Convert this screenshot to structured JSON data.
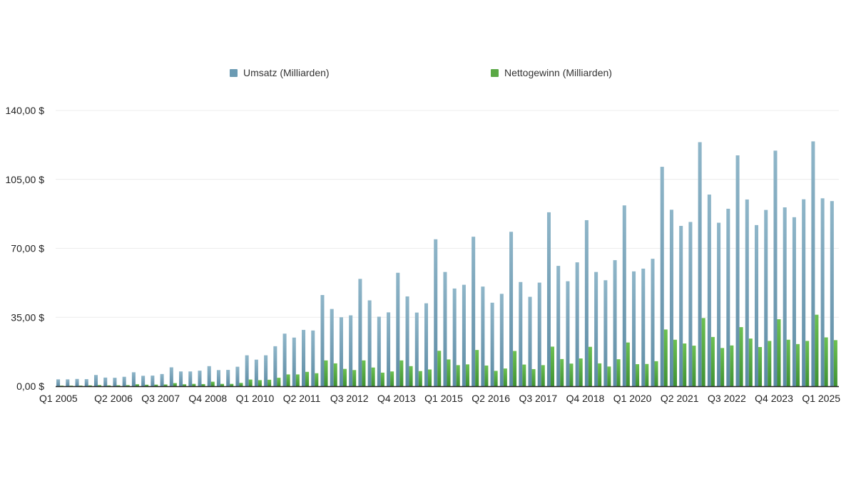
{
  "chart_data": {
    "type": "bar",
    "title": "",
    "xlabel": "",
    "ylabel": "",
    "ylim": [
      0,
      140
    ],
    "yticks": [
      "0,00 $",
      "35,00 $",
      "70,00 $",
      "105,00 $",
      "140,00 $"
    ],
    "ytick_values": [
      0,
      35,
      70,
      105,
      140
    ],
    "grid": true,
    "legend_position": "top",
    "x_tick_labels": [
      {
        "label": "Q1 2005",
        "index": 0
      },
      {
        "label": "Q2 2006",
        "index": 5
      },
      {
        "label": "Q3 2007",
        "index": 10
      },
      {
        "label": "Q4 2008",
        "index": 15
      },
      {
        "label": "Q1 2010",
        "index": 20
      },
      {
        "label": "Q2 2011",
        "index": 25
      },
      {
        "label": "Q3 2012",
        "index": 30
      },
      {
        "label": "Q4 2013",
        "index": 35
      },
      {
        "label": "Q1 2015",
        "index": 40
      },
      {
        "label": "Q2 2016",
        "index": 45
      },
      {
        "label": "Q3 2017",
        "index": 50
      },
      {
        "label": "Q4 2018",
        "index": 55
      },
      {
        "label": "Q1 2020",
        "index": 60
      },
      {
        "label": "Q2 2021",
        "index": 65
      },
      {
        "label": "Q3 2022",
        "index": 70
      },
      {
        "label": "Q4 2023",
        "index": 75
      },
      {
        "label": "Q1 2025",
        "index": 80
      }
    ],
    "series": [
      {
        "name": "Umsatz (Milliarden)",
        "color": "#6b9bb3",
        "values": [
          3.5,
          3.5,
          3.7,
          3.6,
          5.7,
          4.4,
          4.3,
          4.8,
          7.1,
          5.3,
          5.4,
          6.2,
          9.6,
          7.5,
          7.5,
          7.9,
          10.2,
          8.2,
          8.3,
          9.9,
          15.7,
          13.5,
          15.7,
          20.3,
          26.7,
          24.7,
          28.6,
          28.3,
          46.3,
          39.2,
          35.0,
          36.0,
          54.5,
          43.6,
          35.3,
          37.5,
          57.6,
          45.6,
          37.4,
          42.1,
          74.6,
          58.0,
          49.6,
          51.5,
          75.9,
          50.6,
          42.4,
          46.9,
          78.4,
          52.9,
          45.4,
          52.6,
          88.3,
          61.1,
          53.3,
          62.9,
          84.3,
          58.0,
          53.8,
          64.0,
          91.8,
          58.3,
          59.7,
          64.7,
          111.4,
          89.6,
          81.4,
          83.4,
          123.9,
          97.3,
          83.0,
          90.1,
          117.2,
          94.8,
          81.8,
          89.5,
          119.6,
          90.8,
          85.8,
          94.9,
          124.3,
          95.4,
          94.0
        ]
      },
      {
        "name": "Nettogewinn (Milliarden)",
        "color": "#5aa845",
        "values": [
          0.29,
          0.29,
          0.32,
          0.43,
          0.57,
          0.41,
          0.47,
          0.55,
          1.0,
          0.77,
          0.82,
          0.9,
          1.6,
          1.0,
          1.2,
          1.1,
          2.3,
          1.2,
          1.2,
          1.7,
          3.4,
          3.1,
          3.3,
          4.3,
          6.0,
          6.0,
          7.3,
          6.6,
          13.1,
          11.6,
          8.8,
          8.2,
          13.1,
          9.5,
          6.9,
          7.5,
          13.1,
          10.2,
          7.7,
          8.5,
          18.0,
          13.6,
          10.7,
          11.1,
          18.4,
          10.5,
          7.8,
          9.0,
          17.9,
          11.0,
          8.7,
          10.7,
          20.1,
          13.8,
          11.5,
          14.1,
          20.0,
          11.6,
          10.0,
          13.7,
          22.2,
          11.2,
          11.3,
          12.7,
          28.8,
          23.6,
          21.7,
          20.6,
          34.6,
          25.0,
          19.4,
          20.7,
          30.0,
          24.2,
          19.9,
          23.0,
          34.0,
          23.6,
          21.4,
          23.0,
          36.3,
          24.8,
          23.4
        ]
      }
    ]
  }
}
